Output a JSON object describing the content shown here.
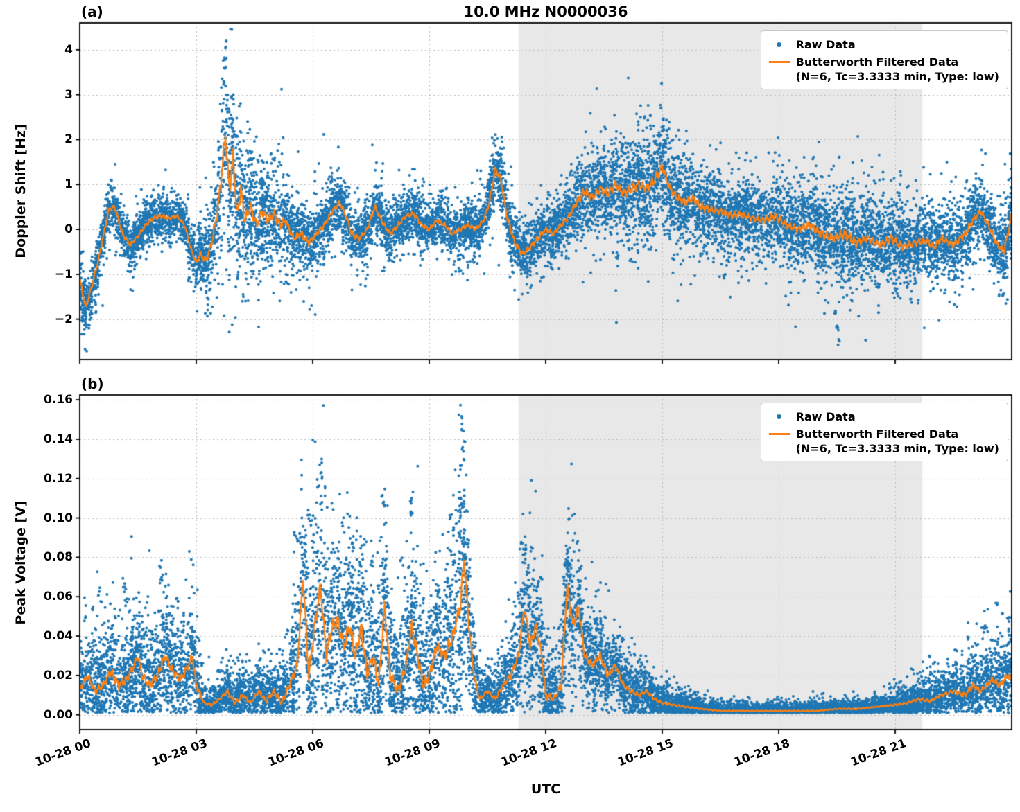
{
  "title": "10.0 MHz N0000036",
  "xlabel": "UTC",
  "colors": {
    "raw": "#1f77b4",
    "filtered": "#ff7f0e",
    "shade": "#e8e8e8",
    "grid": "#bbbbbb"
  },
  "legend": {
    "raw_label": "Raw Data",
    "filtered_label": "Butterworth Filtered Data",
    "filtered_sub": "(N=6, Tc=3.3333 min, Type: low)"
  },
  "chart_data": {
    "type": "scatter",
    "title": "10.0 MHz N0000036",
    "xlabel": "UTC",
    "xlim": [
      0,
      24
    ],
    "x_ticks": [
      0,
      3,
      6,
      9,
      12,
      15,
      18,
      21
    ],
    "x_tick_labels": [
      "10-28 00",
      "10-28 03",
      "10-28 06",
      "10-28 09",
      "10-28 12",
      "10-28 15",
      "10-28 18",
      "10-28 21"
    ],
    "grid": "dotted",
    "legend_position": "upper right",
    "shaded_region": {
      "x_start": 11.3,
      "x_end": 21.7,
      "color": "#e8e8e8"
    },
    "series_legend": [
      "Raw Data",
      "Butterworth Filtered Data (N=6, Tc=3.3333 min, Type: low)"
    ],
    "panels": [
      {
        "label": "(a)",
        "ylabel": "Doppler Shift [Hz]",
        "ylim": [
          -2.9,
          4.6
        ],
        "ytick_values": [
          4,
          3,
          2,
          1,
          0,
          -1,
          -2
        ],
        "ytick_labels": [
          "4",
          "3",
          "2",
          "1",
          "0",
          "−1",
          "−2"
        ],
        "filtered_keypoints": {
          "x": [
            0,
            0.15,
            0.3,
            0.5,
            0.75,
            0.9,
            1.1,
            1.3,
            1.5,
            1.7,
            1.9,
            2.1,
            2.3,
            2.5,
            2.7,
            2.85,
            3.0,
            3.1,
            3.25,
            3.4,
            3.55,
            3.65,
            3.75,
            3.85,
            3.95,
            4.05,
            4.15,
            4.25,
            4.4,
            4.55,
            4.7,
            4.85,
            5.0,
            5.15,
            5.3,
            5.5,
            5.7,
            5.9,
            6.1,
            6.3,
            6.5,
            6.7,
            6.9,
            7.0,
            7.2,
            7.4,
            7.6,
            7.8,
            8.0,
            8.2,
            8.4,
            8.6,
            8.8,
            9.0,
            9.2,
            9.4,
            9.6,
            9.8,
            10.0,
            10.2,
            10.4,
            10.55,
            10.7,
            10.85,
            11.0,
            11.2,
            11.4,
            11.6,
            11.8,
            12.0,
            12.2,
            12.4,
            12.6,
            12.8,
            13.0,
            13.2,
            13.4,
            13.6,
            13.8,
            14.0,
            14.2,
            14.4,
            14.6,
            14.8,
            15.0,
            15.2,
            15.4,
            15.6,
            15.8,
            16.0,
            16.2,
            16.5,
            16.8,
            17.0,
            17.3,
            17.6,
            17.9,
            18.2,
            18.5,
            18.8,
            19.1,
            19.4,
            19.7,
            20.0,
            20.3,
            20.6,
            20.9,
            21.2,
            21.5,
            21.8,
            22.0,
            22.2,
            22.5,
            22.8,
            23.0,
            23.2,
            23.4,
            23.6,
            23.8,
            23.95,
            24.0
          ],
          "y": [
            -1.1,
            -1.75,
            -1.3,
            -0.6,
            0.45,
            0.5,
            -0.1,
            -0.35,
            -0.15,
            0.1,
            0.25,
            0.3,
            0.25,
            0.3,
            0.1,
            -0.4,
            -0.75,
            -0.55,
            -0.7,
            -0.3,
            0.4,
            1.2,
            2.1,
            0.9,
            1.6,
            0.3,
            0.9,
            0.2,
            0.5,
            0.1,
            0.4,
            0.2,
            0.35,
            0.1,
            0.2,
            -0.2,
            -0.1,
            -0.3,
            -0.1,
            0.1,
            0.4,
            0.6,
            0.2,
            -0.1,
            -0.2,
            0.0,
            0.5,
            0.15,
            -0.1,
            0.1,
            0.3,
            0.35,
            0.1,
            0.0,
            0.2,
            0.1,
            -0.1,
            0.0,
            0.1,
            0.0,
            0.2,
            0.6,
            1.35,
            1.1,
            0.3,
            -0.3,
            -0.55,
            -0.4,
            -0.2,
            0.0,
            -0.1,
            0.1,
            0.3,
            0.6,
            0.85,
            0.7,
            0.9,
            0.8,
            1.0,
            0.8,
            0.9,
            1.0,
            0.9,
            1.1,
            1.4,
            0.9,
            0.7,
            0.6,
            0.7,
            0.5,
            0.45,
            0.4,
            0.3,
            0.35,
            0.25,
            0.2,
            0.3,
            0.1,
            0.0,
            0.1,
            -0.1,
            -0.2,
            -0.1,
            -0.3,
            -0.2,
            -0.35,
            -0.2,
            -0.4,
            -0.3,
            -0.25,
            -0.4,
            -0.2,
            -0.35,
            -0.1,
            0.2,
            0.4,
            0.1,
            -0.3,
            -0.5,
            0.1,
            0.3
          ]
        },
        "scatter_spread": {
          "x": [
            0,
            0.5,
            1,
            1.5,
            2,
            2.5,
            3,
            3.4,
            3.6,
            3.8,
            4,
            4.2,
            4.5,
            4.8,
            5.2,
            5.6,
            6,
            6.5,
            7,
            7.5,
            8,
            8.5,
            9,
            9.5,
            10,
            10.4,
            10.7,
            11,
            11.5,
            12,
            12.5,
            13,
            13.5,
            14,
            14.5,
            15,
            15.5,
            16,
            16.5,
            17,
            17.5,
            18,
            18.5,
            19,
            19.5,
            20,
            20.5,
            21,
            21.5,
            22,
            22.5,
            23,
            23.5,
            24
          ],
          "sigma": [
            0.28,
            0.25,
            0.22,
            0.22,
            0.2,
            0.2,
            0.25,
            0.4,
            0.7,
            0.9,
            0.8,
            0.7,
            0.6,
            0.5,
            0.45,
            0.35,
            0.3,
            0.3,
            0.28,
            0.28,
            0.25,
            0.25,
            0.22,
            0.25,
            0.22,
            0.25,
            0.3,
            0.3,
            0.3,
            0.25,
            0.3,
            0.4,
            0.45,
            0.5,
            0.5,
            0.5,
            0.45,
            0.4,
            0.35,
            0.35,
            0.35,
            0.4,
            0.4,
            0.45,
            0.45,
            0.45,
            0.4,
            0.4,
            0.38,
            0.35,
            0.35,
            0.35,
            0.35,
            0.4
          ]
        },
        "outliers": [
          [
            0.05,
            -1.8
          ],
          [
            0.08,
            -2.05
          ],
          [
            0.12,
            -1.95
          ],
          [
            0.3,
            -1.9
          ],
          [
            3.7,
            3.3
          ],
          [
            3.73,
            3.7
          ],
          [
            3.75,
            4.2
          ],
          [
            3.77,
            3.95
          ],
          [
            3.8,
            3.0
          ],
          [
            3.85,
            2.75
          ],
          [
            3.9,
            2.5
          ],
          [
            4.35,
            1.75
          ],
          [
            4.4,
            1.6
          ],
          [
            4.95,
            1.7
          ],
          [
            5.0,
            1.6
          ],
          [
            6.45,
            1.2
          ],
          [
            6.5,
            1.1
          ],
          [
            7.6,
            1.0
          ],
          [
            10.65,
            1.5
          ],
          [
            10.7,
            1.45
          ],
          [
            13.5,
            1.8
          ],
          [
            14.0,
            1.9
          ],
          [
            14.9,
            2.1
          ],
          [
            15.0,
            2.5
          ],
          [
            15.05,
            2.3
          ],
          [
            15.1,
            2.0
          ],
          [
            16.6,
            -1.05
          ],
          [
            18.3,
            -1.2
          ],
          [
            19.45,
            -1.9
          ],
          [
            19.5,
            -2.25
          ],
          [
            19.55,
            -2.6
          ],
          [
            20.6,
            -1.3
          ],
          [
            23.8,
            -1.5
          ]
        ]
      },
      {
        "label": "(b)",
        "ylabel": "Peak Voltage [V]",
        "ylim": [
          -0.0075,
          0.1625
        ],
        "ytick_values": [
          0.16,
          0.14,
          0.12,
          0.1,
          0.08,
          0.06,
          0.04,
          0.02,
          0.0
        ],
        "ytick_labels": [
          "0.16",
          "0.14",
          "0.12",
          "0.10",
          "0.08",
          "0.06",
          "0.04",
          "0.02",
          "0.00"
        ],
        "filtered_keypoints": {
          "x": [
            0,
            0.2,
            0.4,
            0.6,
            0.8,
            1.0,
            1.2,
            1.4,
            1.5,
            1.6,
            1.8,
            2.0,
            2.2,
            2.4,
            2.6,
            2.8,
            2.9,
            3.0,
            3.2,
            3.4,
            3.6,
            3.8,
            4.0,
            4.2,
            4.4,
            4.6,
            4.8,
            5.0,
            5.2,
            5.4,
            5.6,
            5.75,
            5.9,
            6.05,
            6.2,
            6.35,
            6.5,
            6.65,
            6.8,
            6.95,
            7.1,
            7.25,
            7.4,
            7.55,
            7.7,
            7.85,
            8.0,
            8.2,
            8.4,
            8.55,
            8.7,
            8.85,
            9.0,
            9.2,
            9.4,
            9.6,
            9.8,
            9.9,
            10.0,
            10.15,
            10.3,
            10.5,
            10.7,
            10.9,
            11.1,
            11.3,
            11.45,
            11.6,
            11.75,
            11.9,
            12.0,
            12.2,
            12.4,
            12.55,
            12.7,
            12.85,
            13.0,
            13.2,
            13.4,
            13.6,
            13.8,
            14.0,
            14.2,
            14.4,
            14.6,
            14.8,
            15.0,
            15.3,
            15.6,
            16.0,
            16.5,
            17.0,
            17.5,
            18.0,
            18.5,
            19.0,
            19.5,
            20.0,
            20.5,
            21.0,
            21.3,
            21.6,
            21.9,
            22.2,
            22.5,
            22.8,
            23.0,
            23.2,
            23.5,
            23.7,
            23.9,
            24.0
          ],
          "y": [
            0.013,
            0.02,
            0.012,
            0.015,
            0.022,
            0.015,
            0.018,
            0.025,
            0.03,
            0.02,
            0.015,
            0.02,
            0.03,
            0.022,
            0.018,
            0.025,
            0.03,
            0.015,
            0.006,
            0.005,
            0.008,
            0.012,
            0.006,
            0.01,
            0.006,
            0.012,
            0.007,
            0.012,
            0.006,
            0.015,
            0.025,
            0.07,
            0.02,
            0.045,
            0.065,
            0.03,
            0.045,
            0.048,
            0.035,
            0.045,
            0.03,
            0.045,
            0.02,
            0.03,
            0.015,
            0.055,
            0.02,
            0.012,
            0.025,
            0.045,
            0.03,
            0.015,
            0.02,
            0.035,
            0.03,
            0.04,
            0.055,
            0.08,
            0.05,
            0.02,
            0.008,
            0.012,
            0.008,
            0.015,
            0.02,
            0.03,
            0.055,
            0.035,
            0.045,
            0.03,
            0.01,
            0.008,
            0.015,
            0.065,
            0.045,
            0.055,
            0.03,
            0.025,
            0.03,
            0.02,
            0.025,
            0.015,
            0.012,
            0.01,
            0.012,
            0.008,
            0.006,
            0.005,
            0.004,
            0.003,
            0.002,
            0.002,
            0.002,
            0.002,
            0.002,
            0.002,
            0.003,
            0.003,
            0.004,
            0.005,
            0.006,
            0.008,
            0.007,
            0.01,
            0.012,
            0.01,
            0.015,
            0.012,
            0.018,
            0.015,
            0.02,
            0.018
          ]
        },
        "scatter_spread": {
          "x": [
            0,
            0.5,
            1,
            1.5,
            2,
            2.5,
            3,
            3.2,
            3.6,
            4,
            4.5,
            5,
            5.4,
            5.8,
            6.2,
            6.6,
            7,
            7.4,
            7.8,
            8.2,
            8.6,
            9,
            9.4,
            9.8,
            10.1,
            10.4,
            10.8,
            11.2,
            11.5,
            11.9,
            12.2,
            12.6,
            13,
            13.5,
            14,
            14.5,
            15,
            15.5,
            16,
            17,
            18,
            19,
            20,
            20.5,
            21,
            21.5,
            22,
            22.5,
            23,
            23.5,
            24
          ],
          "sigma": [
            0.01,
            0.012,
            0.012,
            0.013,
            0.013,
            0.012,
            0.01,
            0.004,
            0.005,
            0.006,
            0.006,
            0.007,
            0.01,
            0.022,
            0.028,
            0.022,
            0.022,
            0.02,
            0.022,
            0.015,
            0.02,
            0.015,
            0.018,
            0.03,
            0.012,
            0.005,
            0.007,
            0.012,
            0.018,
            0.015,
            0.008,
            0.018,
            0.012,
            0.01,
            0.008,
            0.006,
            0.004,
            0.003,
            0.002,
            0.0015,
            0.0015,
            0.0015,
            0.002,
            0.002,
            0.003,
            0.004,
            0.005,
            0.006,
            0.008,
            0.009,
            0.01
          ]
        },
        "outliers": [
          [
            0.35,
            0.056
          ],
          [
            0.9,
            0.05
          ],
          [
            1.15,
            0.065
          ],
          [
            1.2,
            0.06
          ],
          [
            2.05,
            0.078
          ],
          [
            2.1,
            0.07
          ],
          [
            2.5,
            0.06
          ],
          [
            5.55,
            0.095
          ],
          [
            5.6,
            0.09
          ],
          [
            5.9,
            0.104
          ],
          [
            5.95,
            0.1
          ],
          [
            6.18,
            0.12
          ],
          [
            6.2,
            0.133
          ],
          [
            6.22,
            0.127
          ],
          [
            6.3,
            0.08
          ],
          [
            7.0,
            0.09
          ],
          [
            7.05,
            0.085
          ],
          [
            7.35,
            0.09
          ],
          [
            7.5,
            0.08
          ],
          [
            7.8,
            0.113
          ],
          [
            7.82,
            0.108
          ],
          [
            8.3,
            0.08
          ],
          [
            8.5,
            0.11
          ],
          [
            8.55,
            0.105
          ],
          [
            9.55,
            0.104
          ],
          [
            9.6,
            0.095
          ],
          [
            9.82,
            0.13
          ],
          [
            9.85,
            0.153
          ],
          [
            9.87,
            0.148
          ],
          [
            9.9,
            0.14
          ],
          [
            10.0,
            0.09
          ],
          [
            11.4,
            0.09
          ],
          [
            11.45,
            0.085
          ],
          [
            11.9,
            0.07
          ],
          [
            12.55,
            0.085
          ],
          [
            12.6,
            0.08
          ],
          [
            13.3,
            0.05
          ],
          [
            14.0,
            0.04
          ],
          [
            21.9,
            0.03
          ],
          [
            22.9,
            0.04
          ],
          [
            23.3,
            0.045
          ],
          [
            23.6,
            0.057
          ],
          [
            23.9,
            0.05
          ]
        ]
      }
    ]
  }
}
